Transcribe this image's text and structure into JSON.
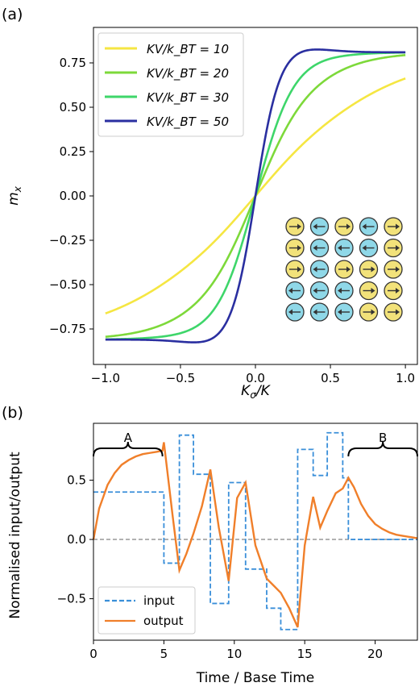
{
  "chart_data": [
    {
      "panel_label": "(a)",
      "type": "line",
      "xlabel": "K_σ/K",
      "ylabel": "m_x",
      "xlim": [
        -1.08,
        1.08
      ],
      "ylim": [
        -0.95,
        0.95
      ],
      "xticks": [
        "−1.0",
        "−0.5",
        "0.0",
        "0.5",
        "1.0"
      ],
      "xtick_values": [
        -1.0,
        -0.5,
        0.0,
        0.5,
        1.0
      ],
      "yticks": [
        "0.75",
        "0.50",
        "0.25",
        "0.00",
        "−0.25",
        "−0.50",
        "−0.75"
      ],
      "ytick_values": [
        0.75,
        0.5,
        0.25,
        0.0,
        -0.25,
        -0.5,
        -0.75
      ],
      "grid": false,
      "legend_position": "top-left",
      "series": [
        {
          "name": "KV/k_BT = 10",
          "color": "#f5e642",
          "alpha": 10
        },
        {
          "name": "KV/k_BT = 20",
          "color": "#7dd93a",
          "alpha": 20
        },
        {
          "name": "KV/k_BT = 30",
          "color": "#3ed66a",
          "alpha": 30
        },
        {
          "name": "KV/k_BT = 50",
          "color": "#2a2fa0",
          "alpha": 50
        }
      ],
      "inset": {
        "description_rows": [
          [
            1,
            -1,
            1,
            -1,
            1
          ],
          [
            1,
            -1,
            -1,
            -1,
            1
          ],
          [
            1,
            -1,
            1,
            1,
            1
          ],
          [
            -1,
            -1,
            -1,
            1,
            1
          ],
          [
            -1,
            -1,
            -1,
            1,
            1
          ]
        ],
        "color_right": "#f2e27a",
        "color_left": "#8fd8e8"
      }
    },
    {
      "panel_label": "(b)",
      "type": "line",
      "xlabel": "Time / Base Time",
      "ylabel": "Normalised input/output",
      "xlim": [
        0,
        23
      ],
      "ylim": [
        -0.85,
        0.98
      ],
      "xticks": [
        "0",
        "5",
        "10",
        "15",
        "20"
      ],
      "xtick_values": [
        0,
        5,
        10,
        15,
        20
      ],
      "yticks": [
        "0.5",
        "0.0",
        "−0.5"
      ],
      "ytick_values": [
        0.5,
        0.0,
        -0.5
      ],
      "grid": false,
      "legend_position": "lower-left",
      "annotations": [
        {
          "text": "A",
          "x_range": [
            0,
            4.9
          ]
        },
        {
          "text": "B",
          "x_range": [
            18.1,
            23
          ]
        }
      ],
      "series": [
        {
          "name": "input",
          "style": "dashed",
          "color": "#3a8fd9",
          "x": [
            0,
            5,
            5,
            6.1,
            6.1,
            7.1,
            7.1,
            8.3,
            8.3,
            9.6,
            9.6,
            10.8,
            10.8,
            12.3,
            12.3,
            13.3,
            13.3,
            14.5,
            14.5,
            15.6,
            15.6,
            16.6,
            16.6,
            17.7,
            17.7,
            18.1,
            18.1,
            23
          ],
          "y": [
            0.4,
            0.4,
            -0.2,
            -0.2,
            0.88,
            0.88,
            0.55,
            0.55,
            -0.54,
            -0.54,
            0.48,
            0.48,
            -0.25,
            -0.25,
            -0.58,
            -0.58,
            -0.76,
            -0.76,
            0.76,
            0.76,
            0.54,
            0.54,
            0.9,
            0.9,
            0.52,
            0.52,
            0.0,
            0.0
          ]
        },
        {
          "name": "output",
          "style": "solid",
          "color": "#f07f2a",
          "x": [
            0,
            0.4,
            1,
            1.5,
            2,
            2.5,
            3,
            3.5,
            4,
            4.5,
            4.9,
            5.0,
            5.6,
            6.1,
            6.6,
            7.1,
            7.7,
            8.3,
            8.9,
            9.6,
            10.2,
            10.8,
            11.5,
            12.3,
            12.8,
            13.3,
            13.9,
            14.5,
            15.0,
            15.6,
            16.1,
            16.6,
            17.2,
            17.7,
            18.1,
            18.5,
            19,
            19.5,
            20,
            20.5,
            21,
            21.5,
            22,
            22.5,
            23
          ],
          "y": [
            0.0,
            0.26,
            0.46,
            0.56,
            0.63,
            0.67,
            0.7,
            0.72,
            0.73,
            0.74,
            0.75,
            0.82,
            0.22,
            -0.26,
            -0.12,
            0.05,
            0.28,
            0.59,
            0.1,
            -0.35,
            0.35,
            0.48,
            -0.05,
            -0.33,
            -0.39,
            -0.45,
            -0.58,
            -0.74,
            -0.05,
            0.36,
            0.1,
            0.24,
            0.39,
            0.43,
            0.52,
            0.44,
            0.3,
            0.2,
            0.13,
            0.09,
            0.06,
            0.04,
            0.03,
            0.02,
            0.01
          ]
        }
      ]
    }
  ]
}
